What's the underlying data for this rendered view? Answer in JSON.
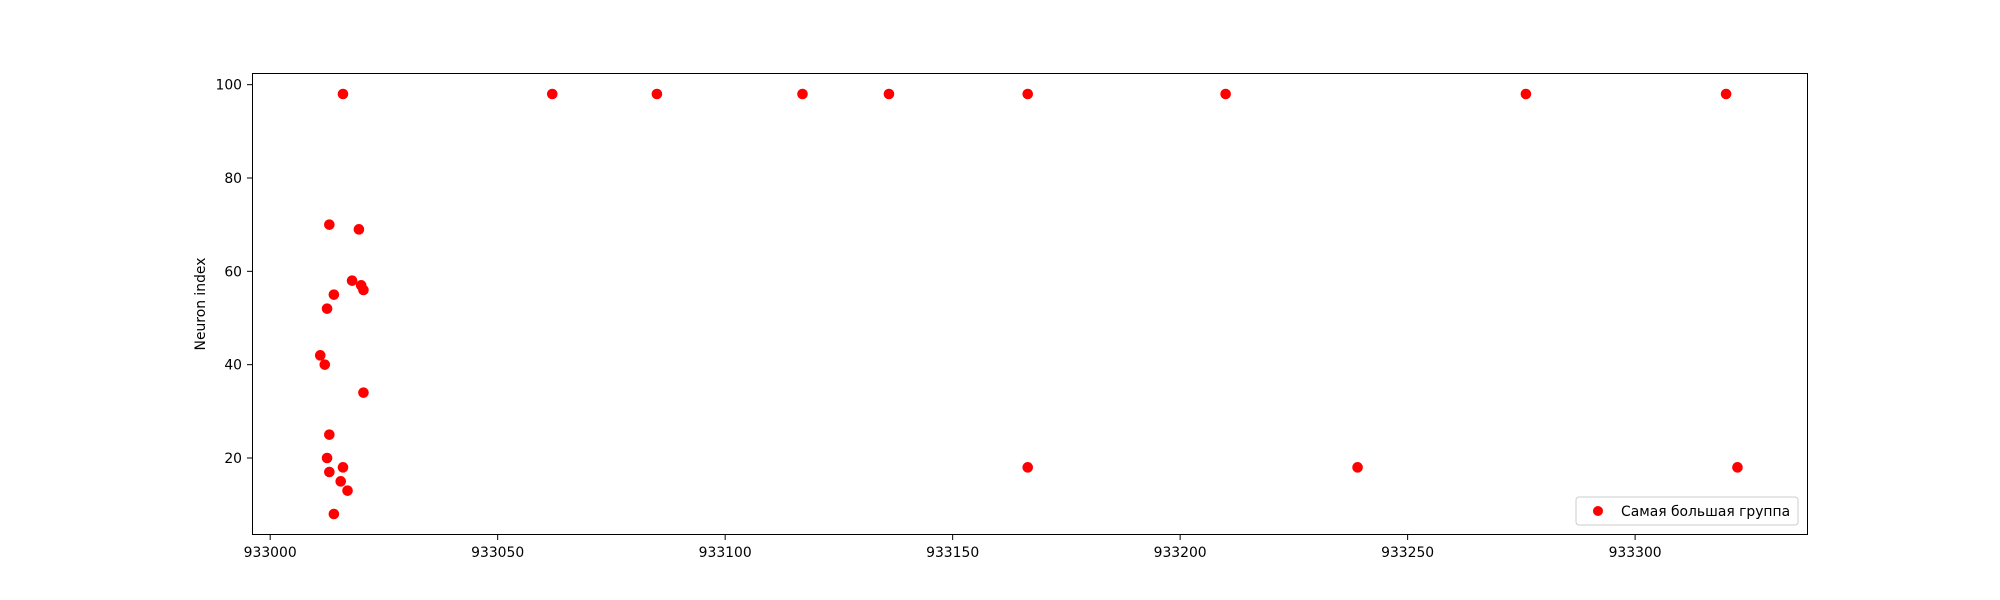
{
  "chart_data": {
    "type": "scatter",
    "title": "",
    "xlabel": "",
    "ylabel": "Neuron index",
    "xlim": [
      932996,
      933338
    ],
    "ylim": [
      3.5,
      102.5
    ],
    "xticks": [
      933000,
      933050,
      933100,
      933150,
      933200,
      933250,
      933300
    ],
    "yticks": [
      20,
      40,
      60,
      80,
      100
    ],
    "grid": false,
    "legend": {
      "position": "lower-right"
    },
    "series": [
      {
        "name": "Самая большая группа",
        "color": "#ff0000",
        "points": [
          {
            "x": 933016,
            "y": 98
          },
          {
            "x": 933062,
            "y": 98
          },
          {
            "x": 933085,
            "y": 98
          },
          {
            "x": 933117,
            "y": 98
          },
          {
            "x": 933136,
            "y": 98
          },
          {
            "x": 933166.5,
            "y": 98
          },
          {
            "x": 933210,
            "y": 98
          },
          {
            "x": 933276,
            "y": 98
          },
          {
            "x": 933320,
            "y": 98
          },
          {
            "x": 933013,
            "y": 70
          },
          {
            "x": 933019.5,
            "y": 69
          },
          {
            "x": 933018,
            "y": 58
          },
          {
            "x": 933020,
            "y": 57
          },
          {
            "x": 933020.5,
            "y": 56
          },
          {
            "x": 933014,
            "y": 55
          },
          {
            "x": 933012.5,
            "y": 52
          },
          {
            "x": 933011,
            "y": 42
          },
          {
            "x": 933012,
            "y": 40
          },
          {
            "x": 933020.5,
            "y": 34
          },
          {
            "x": 933013,
            "y": 25
          },
          {
            "x": 933012.5,
            "y": 20
          },
          {
            "x": 933016,
            "y": 18
          },
          {
            "x": 933013,
            "y": 17
          },
          {
            "x": 933015.5,
            "y": 15
          },
          {
            "x": 933017,
            "y": 13
          },
          {
            "x": 933014,
            "y": 8
          },
          {
            "x": 933166.5,
            "y": 18
          },
          {
            "x": 933239,
            "y": 18
          },
          {
            "x": 933322.5,
            "y": 18
          }
        ]
      }
    ]
  }
}
